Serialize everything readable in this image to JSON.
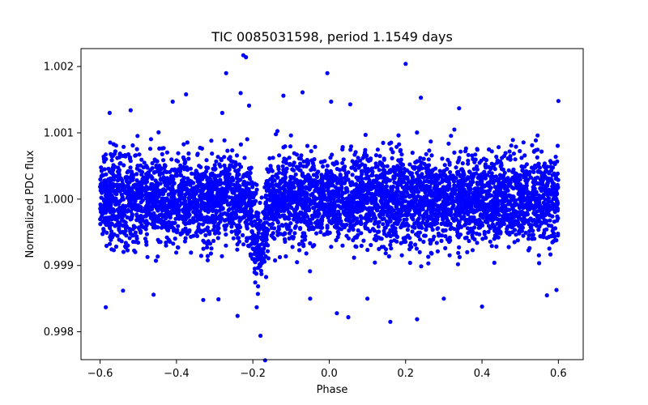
{
  "chart_data": {
    "type": "scatter",
    "title": "TIC 0085031598, period 1.1549 days",
    "xlabel": "Phase",
    "ylabel": "Normalized PDC flux",
    "xlim": [
      -0.65,
      0.665
    ],
    "ylim": [
      0.99758,
      1.00227
    ],
    "xticks": [
      -0.6,
      -0.4,
      -0.2,
      0.0,
      0.2,
      0.4,
      0.6
    ],
    "xtick_labels": [
      "−0.6",
      "−0.4",
      "−0.2",
      "0.0",
      "0.2",
      "0.4",
      "0.6"
    ],
    "yticks": [
      0.998,
      0.999,
      1.0,
      1.001,
      1.002
    ],
    "ytick_labels": [
      "0.998",
      "0.999",
      "1.000",
      "1.001",
      "1.002"
    ],
    "grid": false,
    "series": [
      {
        "name": "PDC flux",
        "color": "#0000ff",
        "marker": "circle",
        "phase_range": [
          -0.6,
          0.6
        ],
        "baseline": 1.0,
        "scatter_sigma": 0.00033,
        "transit": {
          "center": -0.185,
          "half_width": 0.025,
          "depth": 0.0011
        },
        "outliers": [
          {
            "x": -0.585,
            "y": 0.99837
          },
          {
            "x": -0.575,
            "y": 1.0013
          },
          {
            "x": -0.52,
            "y": 1.00134
          },
          {
            "x": -0.54,
            "y": 0.99862
          },
          {
            "x": -0.46,
            "y": 0.99856
          },
          {
            "x": -0.41,
            "y": 1.00147
          },
          {
            "x": -0.375,
            "y": 1.00158
          },
          {
            "x": -0.33,
            "y": 0.99848
          },
          {
            "x": -0.29,
            "y": 0.99849
          },
          {
            "x": -0.28,
            "y": 1.0013
          },
          {
            "x": -0.27,
            "y": 1.0019
          },
          {
            "x": -0.24,
            "y": 0.99824
          },
          {
            "x": -0.232,
            "y": 1.0016
          },
          {
            "x": -0.225,
            "y": 1.00217
          },
          {
            "x": -0.218,
            "y": 1.00214
          },
          {
            "x": -0.21,
            "y": 1.00141
          },
          {
            "x": -0.19,
            "y": 0.99837
          },
          {
            "x": -0.18,
            "y": 0.99794
          },
          {
            "x": -0.168,
            "y": 0.99757
          },
          {
            "x": -0.12,
            "y": 1.00156
          },
          {
            "x": -0.07,
            "y": 1.00161
          },
          {
            "x": -0.05,
            "y": 0.9985
          },
          {
            "x": -0.005,
            "y": 1.0019
          },
          {
            "x": 0.005,
            "y": 1.00147
          },
          {
            "x": 0.02,
            "y": 0.99828
          },
          {
            "x": 0.05,
            "y": 0.99822
          },
          {
            "x": 0.055,
            "y": 1.00143
          },
          {
            "x": 0.1,
            "y": 0.9985
          },
          {
            "x": 0.16,
            "y": 0.99815
          },
          {
            "x": 0.2,
            "y": 1.00204
          },
          {
            "x": 0.23,
            "y": 0.99819
          },
          {
            "x": 0.24,
            "y": 1.00153
          },
          {
            "x": 0.3,
            "y": 0.9985
          },
          {
            "x": 0.34,
            "y": 1.00137
          },
          {
            "x": 0.4,
            "y": 0.99838
          },
          {
            "x": 0.57,
            "y": 0.99855
          },
          {
            "x": 0.6,
            "y": 1.00148
          },
          {
            "x": 0.595,
            "y": 0.99863
          }
        ]
      }
    ]
  }
}
